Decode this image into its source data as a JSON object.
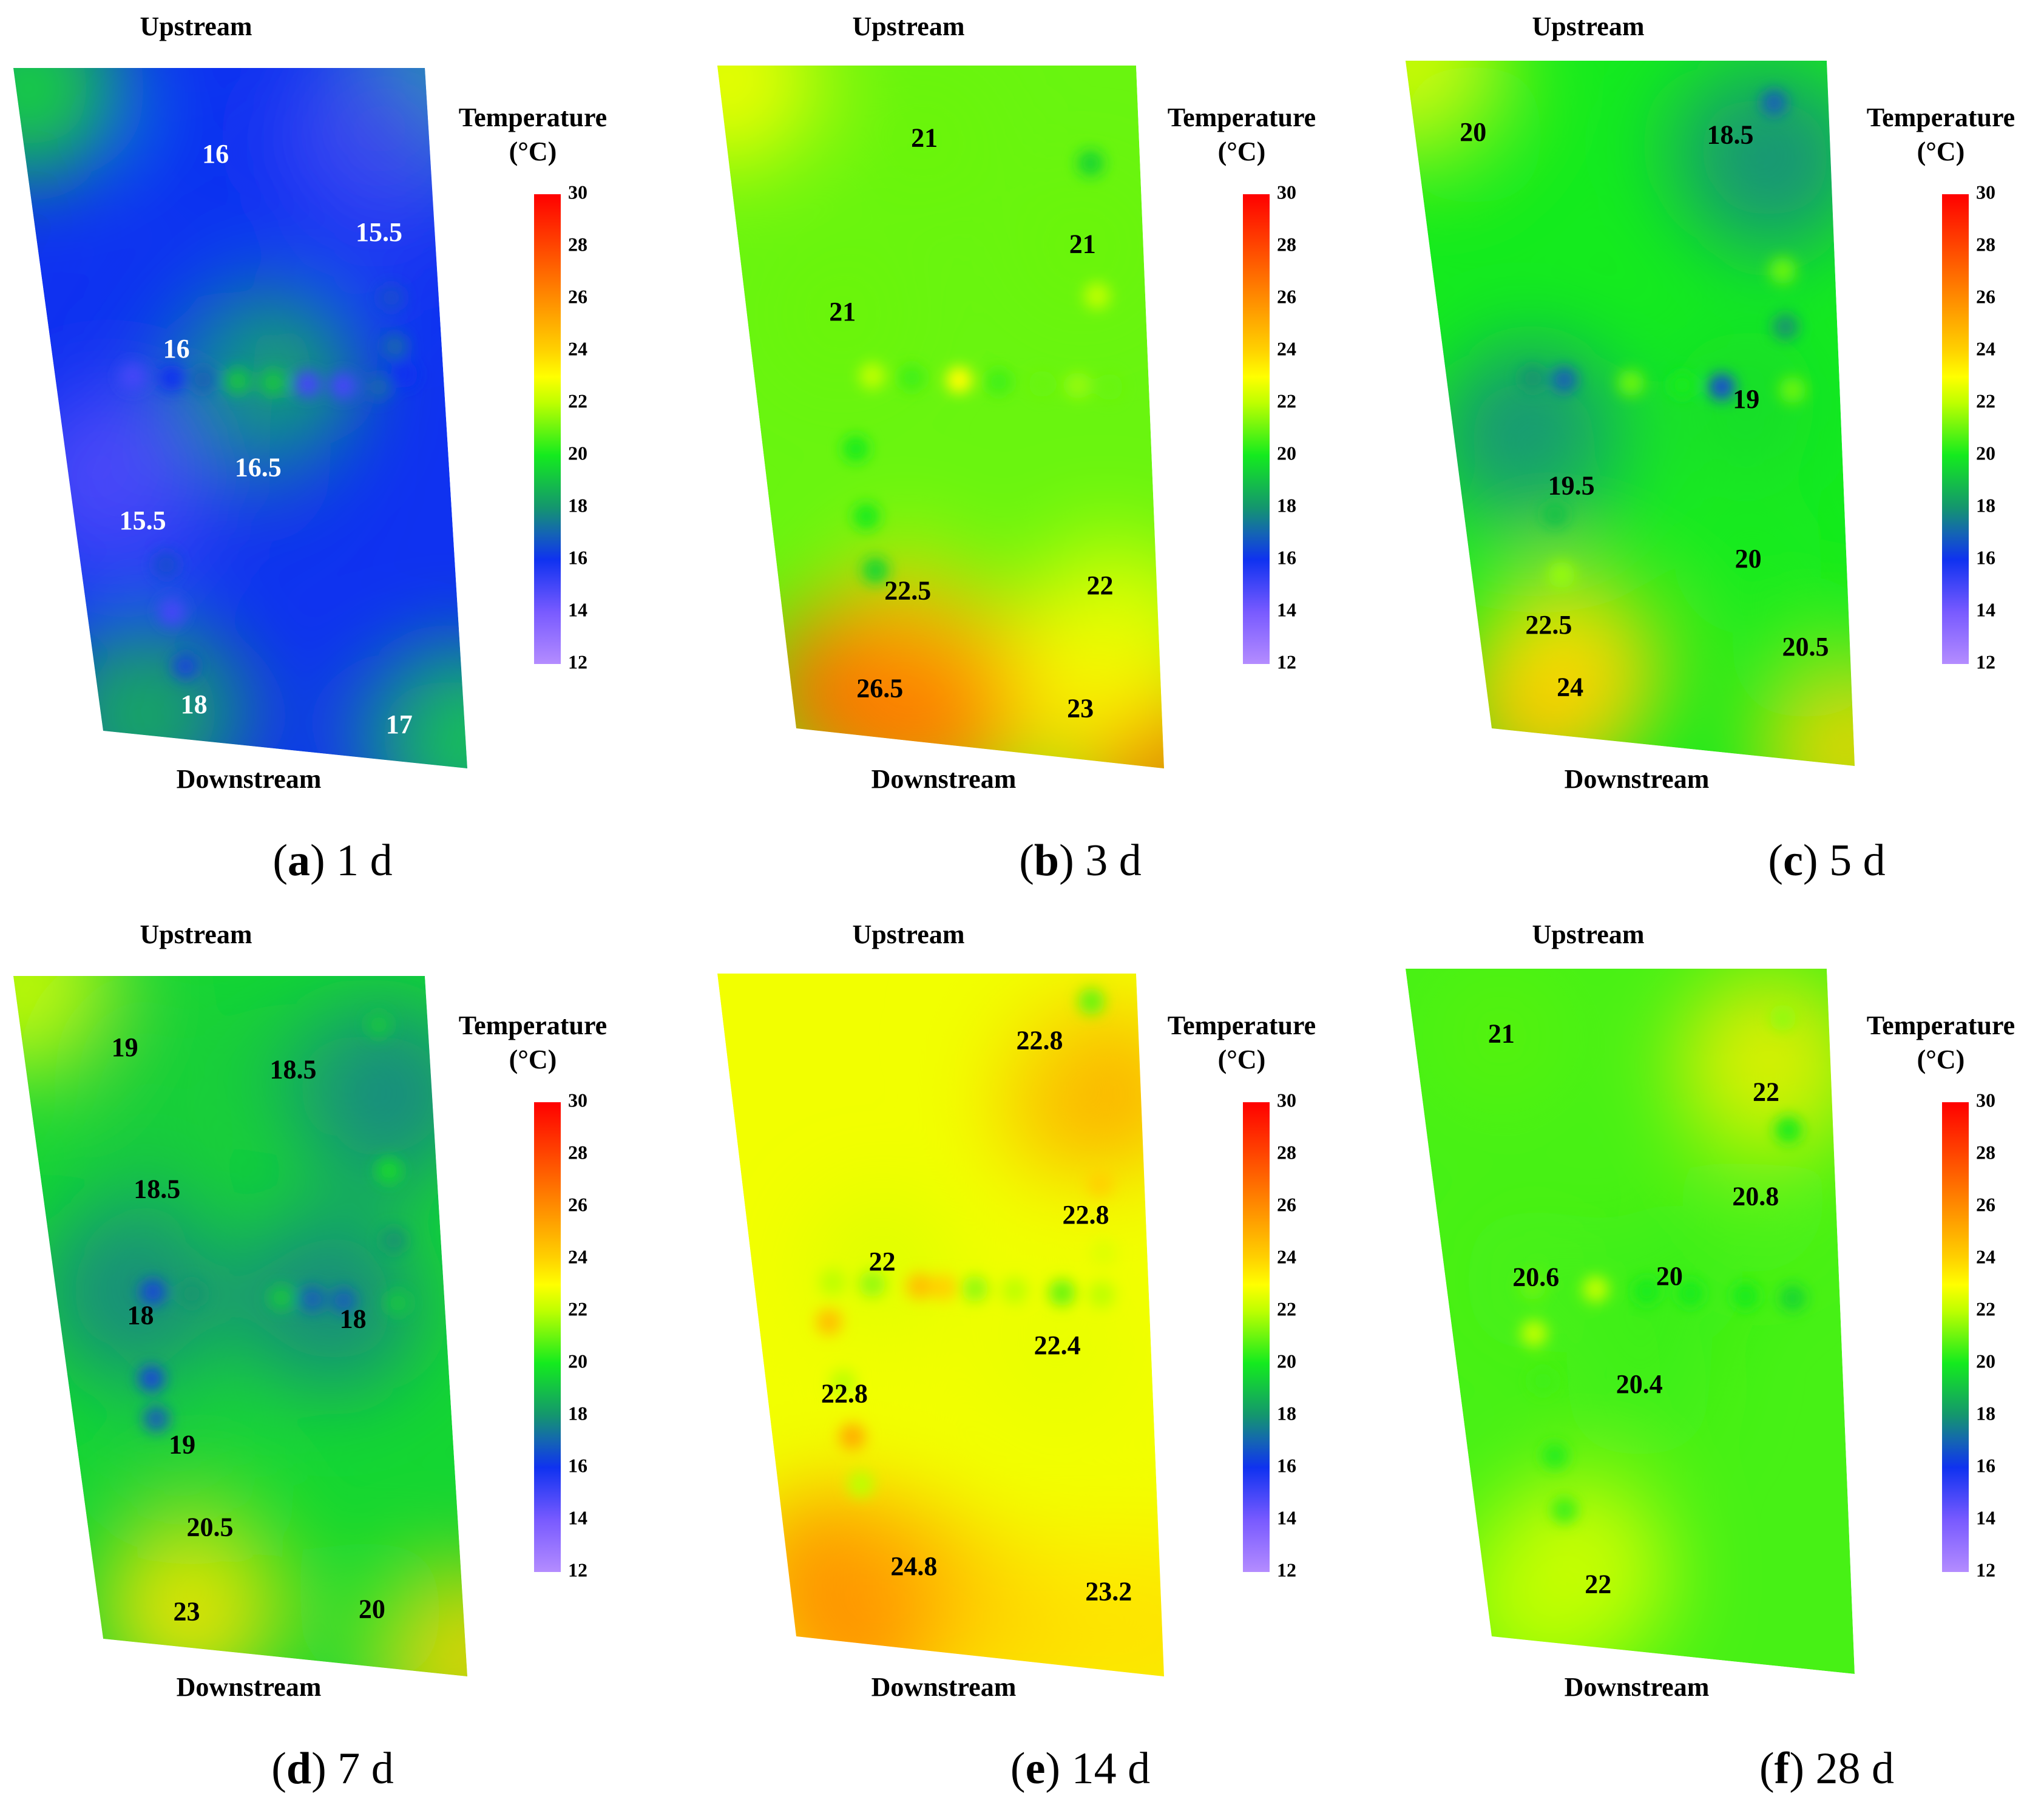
{
  "chart_data": [
    {
      "type": "heatmap",
      "panel_letter": "a",
      "time_label": "1 d",
      "top_label": "Upstream",
      "bottom_label": "Downstream",
      "colorbar": {
        "title": [
          "Temperature",
          "(°C)"
        ],
        "ticks": [
          "30",
          "28",
          "26",
          "24",
          "22",
          "20",
          "18",
          "16",
          "14",
          "12"
        ],
        "range": [
          12,
          30
        ]
      },
      "base_temperature": 16,
      "annotations": [
        {
          "u": 0.47,
          "v": 0.13,
          "value": "16"
        },
        {
          "u": 0.86,
          "v": 0.24,
          "value": "15.5"
        },
        {
          "u": 0.32,
          "v": 0.42,
          "value": "16"
        },
        {
          "u": 0.5,
          "v": 0.59,
          "value": "16.5"
        },
        {
          "u": 0.18,
          "v": 0.68,
          "value": "15.5"
        },
        {
          "u": 0.26,
          "v": 0.95,
          "value": "18"
        },
        {
          "u": 0.82,
          "v": 0.95,
          "value": "17"
        }
      ],
      "hotspots": [
        {
          "u": 0.03,
          "v": 0.03,
          "t": 20
        },
        {
          "u": 0.99,
          "v": 0.04,
          "t": 19
        },
        {
          "u": 0.12,
          "v": 0.62,
          "t": 14.5
        },
        {
          "u": 0.88,
          "v": 0.1,
          "t": 15
        },
        {
          "u": 0.53,
          "v": 0.46,
          "t": 19
        },
        {
          "u": 0.12,
          "v": 0.97,
          "t": 19
        },
        {
          "u": 0.98,
          "v": 0.96,
          "t": 20
        }
      ],
      "sensor_points": [
        {
          "u": 0.2,
          "v": 0.46,
          "t": 15
        },
        {
          "u": 0.3,
          "v": 0.46,
          "t": 16
        },
        {
          "u": 0.38,
          "v": 0.46,
          "t": 17
        },
        {
          "u": 0.47,
          "v": 0.46,
          "t": 19
        },
        {
          "u": 0.56,
          "v": 0.46,
          "t": 19
        },
        {
          "u": 0.65,
          "v": 0.46,
          "t": 15
        },
        {
          "u": 0.74,
          "v": 0.46,
          "t": 15
        },
        {
          "u": 0.83,
          "v": 0.46,
          "t": 17
        },
        {
          "u": 0.9,
          "v": 0.44,
          "t": 16
        },
        {
          "u": 0.88,
          "v": 0.33,
          "t": 16.5
        },
        {
          "u": 0.88,
          "v": 0.4,
          "t": 17
        },
        {
          "u": 0.23,
          "v": 0.74,
          "t": 16.5
        },
        {
          "u": 0.23,
          "v": 0.81,
          "t": 15
        },
        {
          "u": 0.25,
          "v": 0.89,
          "t": 16.5
        }
      ]
    },
    {
      "type": "heatmap",
      "panel_letter": "b",
      "time_label": "3 d",
      "top_label": "Upstream",
      "bottom_label": "Downstream",
      "colorbar": {
        "title": [
          "Temperature",
          "(°C)"
        ],
        "ticks": [
          "30",
          "28",
          "26",
          "24",
          "22",
          "20",
          "18",
          "16",
          "14",
          "12"
        ],
        "range": [
          12,
          30
        ]
      },
      "base_temperature": 21,
      "annotations": [
        {
          "u": 0.48,
          "v": 0.11,
          "value": "21"
        },
        {
          "u": 0.85,
          "v": 0.26,
          "value": "21"
        },
        {
          "u": 0.24,
          "v": 0.37,
          "value": "21"
        },
        {
          "u": 0.34,
          "v": 0.78,
          "value": "22.5"
        },
        {
          "u": 0.85,
          "v": 0.75,
          "value": "22"
        },
        {
          "u": 0.24,
          "v": 0.93,
          "value": "26.5"
        },
        {
          "u": 0.78,
          "v": 0.93,
          "value": "23"
        }
      ],
      "hotspots": [
        {
          "u": 0.02,
          "v": 0.02,
          "t": 23
        },
        {
          "u": 0.18,
          "v": 0.93,
          "t": 28
        },
        {
          "u": 0.32,
          "v": 0.88,
          "t": 26
        },
        {
          "u": 0.98,
          "v": 0.98,
          "t": 27
        },
        {
          "u": 0.65,
          "v": 0.9,
          "t": 24
        },
        {
          "u": 0.35,
          "v": 0.97,
          "t": 26.5
        },
        {
          "u": 0.9,
          "v": 0.82,
          "t": 23
        }
      ],
      "sensor_points": [
        {
          "u": 0.3,
          "v": 0.46,
          "t": 22
        },
        {
          "u": 0.4,
          "v": 0.46,
          "t": 20.5
        },
        {
          "u": 0.52,
          "v": 0.46,
          "t": 23
        },
        {
          "u": 0.62,
          "v": 0.46,
          "t": 20.5
        },
        {
          "u": 0.73,
          "v": 0.46,
          "t": 21
        },
        {
          "u": 0.82,
          "v": 0.46,
          "t": 21.5
        },
        {
          "u": 0.9,
          "v": 0.46,
          "t": 21
        },
        {
          "u": 0.88,
          "v": 0.14,
          "t": 19.5
        },
        {
          "u": 0.88,
          "v": 0.33,
          "t": 22
        },
        {
          "u": 0.24,
          "v": 0.57,
          "t": 20
        },
        {
          "u": 0.25,
          "v": 0.67,
          "t": 20
        },
        {
          "u": 0.26,
          "v": 0.75,
          "t": 19.5
        }
      ]
    },
    {
      "type": "heatmap",
      "panel_letter": "c",
      "time_label": "5 d",
      "top_label": "Upstream",
      "bottom_label": "Downstream",
      "colorbar": {
        "title": [
          "Temperature",
          "(°C)"
        ],
        "ticks": [
          "30",
          "28",
          "26",
          "24",
          "22",
          "20",
          "18",
          "16",
          "14",
          "12"
        ],
        "range": [
          12,
          30
        ]
      },
      "base_temperature": 20,
      "annotations": [
        {
          "u": 0.14,
          "v": 0.11,
          "value": "20"
        },
        {
          "u": 0.76,
          "v": 0.11,
          "value": "18.5"
        },
        {
          "u": 0.76,
          "v": 0.49,
          "value": "19"
        },
        {
          "u": 0.29,
          "v": 0.63,
          "value": "19.5"
        },
        {
          "u": 0.74,
          "v": 0.72,
          "value": "20"
        },
        {
          "u": 0.19,
          "v": 0.84,
          "value": "22.5"
        },
        {
          "u": 0.88,
          "v": 0.84,
          "value": "20.5"
        },
        {
          "u": 0.23,
          "v": 0.93,
          "value": "24"
        }
      ],
      "hotspots": [
        {
          "u": 0.03,
          "v": 0.02,
          "t": 23
        },
        {
          "u": 0.15,
          "v": 0.95,
          "t": 25
        },
        {
          "u": 0.25,
          "v": 0.9,
          "t": 24
        },
        {
          "u": 0.98,
          "v": 0.97,
          "t": 24
        },
        {
          "u": 0.85,
          "v": 0.14,
          "t": 17.5
        },
        {
          "u": 0.2,
          "v": 0.56,
          "t": 17.5
        }
      ],
      "sensor_points": [
        {
          "u": 0.22,
          "v": 0.47,
          "t": 18
        },
        {
          "u": 0.3,
          "v": 0.47,
          "t": 17
        },
        {
          "u": 0.47,
          "v": 0.47,
          "t": 21
        },
        {
          "u": 0.6,
          "v": 0.47,
          "t": 20
        },
        {
          "u": 0.7,
          "v": 0.47,
          "t": 16.5
        },
        {
          "u": 0.88,
          "v": 0.47,
          "t": 21
        },
        {
          "u": 0.87,
          "v": 0.06,
          "t": 17
        },
        {
          "u": 0.87,
          "v": 0.3,
          "t": 21
        },
        {
          "u": 0.87,
          "v": 0.38,
          "t": 18
        },
        {
          "u": 0.24,
          "v": 0.67,
          "t": 19
        },
        {
          "u": 0.24,
          "v": 0.76,
          "t": 21.5
        }
      ]
    },
    {
      "type": "heatmap",
      "panel_letter": "d",
      "time_label": "7 d",
      "top_label": "Upstream",
      "bottom_label": "Downstream",
      "colorbar": {
        "title": [
          "Temperature",
          "(°C)"
        ],
        "ticks": [
          "30",
          "28",
          "26",
          "24",
          "22",
          "20",
          "18",
          "16",
          "14",
          "12"
        ],
        "range": [
          12,
          30
        ]
      },
      "base_temperature": 19.5,
      "annotations": [
        {
          "u": 0.25,
          "v": 0.11,
          "value": "19"
        },
        {
          "u": 0.66,
          "v": 0.14,
          "value": "18.5"
        },
        {
          "u": 0.29,
          "v": 0.32,
          "value": "18.5"
        },
        {
          "u": 0.21,
          "v": 0.51,
          "value": "18"
        },
        {
          "u": 0.76,
          "v": 0.5,
          "value": "18"
        },
        {
          "u": 0.28,
          "v": 0.7,
          "value": "19"
        },
        {
          "u": 0.33,
          "v": 0.82,
          "value": "20.5"
        },
        {
          "u": 0.24,
          "v": 0.95,
          "value": "23"
        },
        {
          "u": 0.75,
          "v": 0.92,
          "value": "20"
        }
      ],
      "hotspots": [
        {
          "u": 0.03,
          "v": 0.02,
          "t": 22.5
        },
        {
          "u": 0.26,
          "v": 0.93,
          "t": 24
        },
        {
          "u": 0.98,
          "v": 0.97,
          "t": 24
        },
        {
          "u": 0.2,
          "v": 0.47,
          "t": 17.5
        },
        {
          "u": 0.7,
          "v": 0.47,
          "t": 17.5
        },
        {
          "u": 0.88,
          "v": 0.17,
          "t": 17.5
        }
      ],
      "sensor_points": [
        {
          "u": 0.25,
          "v": 0.47,
          "t": 16.5
        },
        {
          "u": 0.35,
          "v": 0.47,
          "t": 18
        },
        {
          "u": 0.58,
          "v": 0.47,
          "t": 19
        },
        {
          "u": 0.66,
          "v": 0.47,
          "t": 17
        },
        {
          "u": 0.74,
          "v": 0.47,
          "t": 17
        },
        {
          "u": 0.88,
          "v": 0.47,
          "t": 19
        },
        {
          "u": 0.88,
          "v": 0.07,
          "t": 19
        },
        {
          "u": 0.88,
          "v": 0.28,
          "t": 19.5
        },
        {
          "u": 0.88,
          "v": 0.38,
          "t": 18
        },
        {
          "u": 0.22,
          "v": 0.6,
          "t": 16.5
        },
        {
          "u": 0.22,
          "v": 0.66,
          "t": 17
        }
      ]
    },
    {
      "type": "heatmap",
      "panel_letter": "e",
      "time_label": "14 d",
      "top_label": "Upstream",
      "bottom_label": "Downstream",
      "colorbar": {
        "title": [
          "Temperature",
          "(°C)"
        ],
        "ticks": [
          "30",
          "28",
          "26",
          "24",
          "22",
          "20",
          "18",
          "16",
          "14",
          "12"
        ],
        "range": [
          12,
          30
        ]
      },
      "base_temperature": 22.8,
      "annotations": [
        {
          "u": 0.76,
          "v": 0.1,
          "value": "22.8"
        },
        {
          "u": 0.85,
          "v": 0.35,
          "value": "22.8"
        },
        {
          "u": 0.33,
          "v": 0.43,
          "value": "22"
        },
        {
          "u": 0.76,
          "v": 0.54,
          "value": "22.4"
        },
        {
          "u": 0.2,
          "v": 0.63,
          "value": "22.8"
        },
        {
          "u": 0.34,
          "v": 0.88,
          "value": "24.8"
        },
        {
          "u": 0.86,
          "v": 0.89,
          "value": "23.2"
        }
      ],
      "hotspots": [
        {
          "u": 0.12,
          "v": 0.9,
          "t": 26
        },
        {
          "u": 0.28,
          "v": 0.92,
          "t": 25
        },
        {
          "u": 0.18,
          "v": 0.98,
          "t": 26
        },
        {
          "u": 0.88,
          "v": 0.17,
          "t": 25.5
        },
        {
          "u": 0.6,
          "v": 0.95,
          "t": 24
        },
        {
          "u": 0.95,
          "v": 0.93,
          "t": 23.8
        }
      ],
      "sensor_points": [
        {
          "u": 0.2,
          "v": 0.46,
          "t": 22
        },
        {
          "u": 0.3,
          "v": 0.46,
          "t": 21.5
        },
        {
          "u": 0.42,
          "v": 0.46,
          "t": 24.5
        },
        {
          "u": 0.48,
          "v": 0.46,
          "t": 24
        },
        {
          "u": 0.56,
          "v": 0.46,
          "t": 21.5
        },
        {
          "u": 0.66,
          "v": 0.46,
          "t": 22
        },
        {
          "u": 0.78,
          "v": 0.46,
          "t": 21
        },
        {
          "u": 0.88,
          "v": 0.46,
          "t": 22
        },
        {
          "u": 0.89,
          "v": 0.04,
          "t": 21
        },
        {
          "u": 0.89,
          "v": 0.3,
          "t": 24
        },
        {
          "u": 0.89,
          "v": 0.4,
          "t": 22.5
        },
        {
          "u": 0.18,
          "v": 0.52,
          "t": 24.5
        },
        {
          "u": 0.2,
          "v": 0.61,
          "t": 22
        },
        {
          "u": 0.21,
          "v": 0.69,
          "t": 25
        },
        {
          "u": 0.22,
          "v": 0.76,
          "t": 22
        }
      ]
    },
    {
      "type": "heatmap",
      "panel_letter": "f",
      "time_label": "28 d",
      "top_label": "Upstream",
      "bottom_label": "Downstream",
      "colorbar": {
        "title": [
          "Temperature",
          "(°C)"
        ],
        "ticks": [
          "30",
          "28",
          "26",
          "24",
          "22",
          "20",
          "18",
          "16",
          "14",
          "12"
        ],
        "range": [
          12,
          30
        ]
      },
      "base_temperature": 20.6,
      "annotations": [
        {
          "u": 0.21,
          "v": 0.1,
          "value": "21"
        },
        {
          "u": 0.84,
          "v": 0.18,
          "value": "22"
        },
        {
          "u": 0.8,
          "v": 0.33,
          "value": "20.8"
        },
        {
          "u": 0.57,
          "v": 0.45,
          "value": "20"
        },
        {
          "u": 0.23,
          "v": 0.46,
          "value": "20.6"
        },
        {
          "u": 0.47,
          "v": 0.61,
          "value": "20.4"
        },
        {
          "u": 0.31,
          "v": 0.91,
          "value": "22"
        }
      ],
      "hotspots": [
        {
          "u": 0.85,
          "v": 0.14,
          "t": 23.5
        },
        {
          "u": 0.25,
          "v": 0.89,
          "t": 23
        },
        {
          "u": 0.15,
          "v": 0.94,
          "t": 22
        }
      ],
      "sensor_points": [
        {
          "u": 0.22,
          "v": 0.47,
          "t": 21
        },
        {
          "u": 0.38,
          "v": 0.47,
          "t": 22
        },
        {
          "u": 0.51,
          "v": 0.47,
          "t": 20
        },
        {
          "u": 0.62,
          "v": 0.47,
          "t": 20
        },
        {
          "u": 0.76,
          "v": 0.47,
          "t": 20
        },
        {
          "u": 0.88,
          "v": 0.47,
          "t": 19.5
        },
        {
          "u": 0.89,
          "v": 0.07,
          "t": 21.5
        },
        {
          "u": 0.89,
          "v": 0.23,
          "t": 20
        },
        {
          "u": 0.21,
          "v": 0.54,
          "t": 22
        },
        {
          "u": 0.22,
          "v": 0.61,
          "t": 20.5
        },
        {
          "u": 0.23,
          "v": 0.72,
          "t": 20.2
        },
        {
          "u": 0.24,
          "v": 0.8,
          "t": 20.5
        }
      ]
    }
  ]
}
